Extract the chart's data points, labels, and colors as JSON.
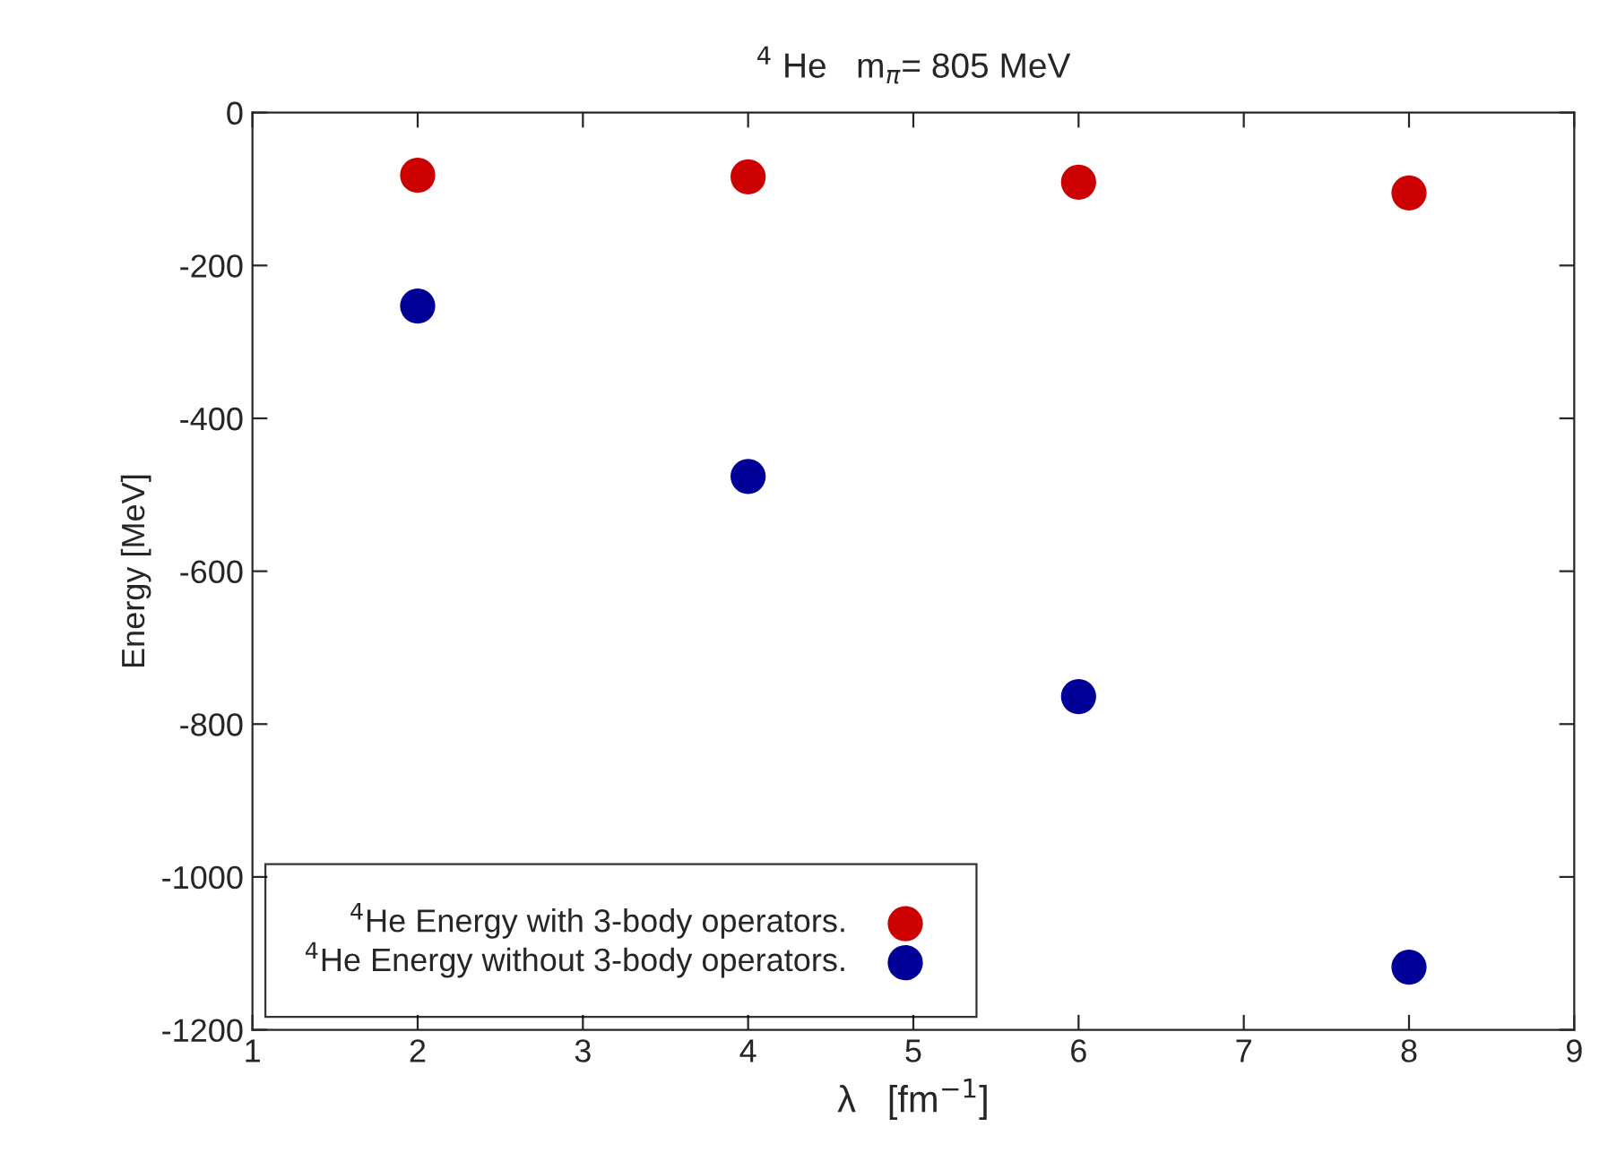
{
  "chart_data": {
    "type": "scatter",
    "title": "$^{4}$ He   m$_{π}$= 805 MeV",
    "xlabel": "λ   [fm$^{−1}$]",
    "ylabel": "Energy [MeV]",
    "xlim": [
      1,
      9
    ],
    "xticks": [
      1,
      2,
      3,
      4,
      5,
      6,
      7,
      8,
      9
    ],
    "ylim": [
      -1200,
      0
    ],
    "yticks": [
      -1200,
      -1000,
      -800,
      -600,
      -400,
      -200,
      0
    ],
    "grid": false,
    "legend": "bottom left",
    "marker": "circle",
    "series": [
      {
        "name": "$^{4}$He Energy with 3-body operators.",
        "color": "#cc0000",
        "x": [
          2,
          4,
          6,
          8
        ],
        "values": [
          -82,
          -84,
          -91,
          -105
        ]
      },
      {
        "name": "$^{4}$He Energy without 3-body operators.",
        "color": "#000099",
        "x": [
          2,
          4,
          6,
          8
        ],
        "values": [
          -253,
          -476,
          -764,
          -1118
        ]
      }
    ]
  }
}
